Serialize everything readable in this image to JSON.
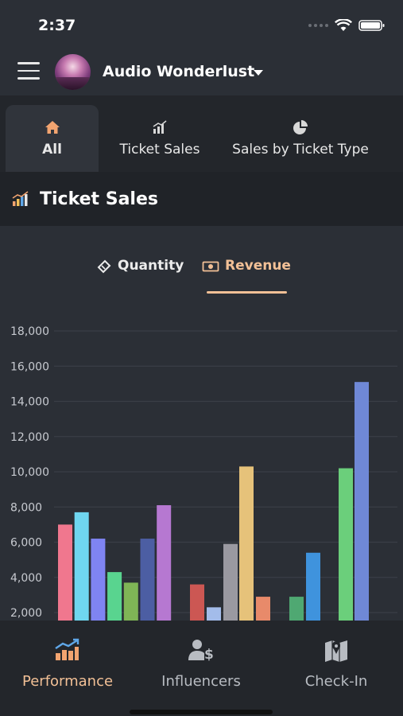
{
  "status_bar": {
    "time": "2:37"
  },
  "header": {
    "event_name": "Audio Wonderlust",
    "menu_icon": "hamburger-menu-icon",
    "dropdown_icon": "caret-down-icon"
  },
  "tabs": [
    {
      "label": "All",
      "icon": "home-icon",
      "active": true
    },
    {
      "label": "Ticket Sales",
      "icon": "bar-chart-icon",
      "active": false
    },
    {
      "label": "Sales by Ticket Type",
      "icon": "pie-chart-icon",
      "active": false
    }
  ],
  "section": {
    "title": "Ticket Sales",
    "icon": "bar-chart-icon"
  },
  "toggles": {
    "quantity_label": "Quantity",
    "revenue_label": "Revenue",
    "active": "revenue",
    "active_color": "#f2c096"
  },
  "chart_data": {
    "type": "bar",
    "y_ticks": [
      "18,000",
      "16,000",
      "14,000",
      "12,000",
      "10,000",
      "8,000",
      "6,000",
      "4,000",
      "2,000"
    ],
    "ylim": [
      2000,
      18000
    ],
    "grid": true,
    "groups": [
      {
        "bars": [
          {
            "value": 7000,
            "color": "#f0778e"
          },
          {
            "value": 7700,
            "color": "#6fd6f0"
          },
          {
            "value": 6200,
            "color": "#7f84f2"
          },
          {
            "value": 4300,
            "color": "#59d48f"
          },
          {
            "value": 3700,
            "color": "#7fb556"
          },
          {
            "value": 6200,
            "color": "#4c5ea3"
          },
          {
            "value": 8100,
            "color": "#b678d1"
          }
        ]
      },
      {
        "bars": [
          {
            "value": 3600,
            "color": "#cc5753"
          },
          {
            "value": 2300,
            "color": "#a3bcea"
          },
          {
            "value": 5900,
            "color": "#9a99a1"
          },
          {
            "value": 10300,
            "color": "#e6c27a"
          },
          {
            "value": 2900,
            "color": "#e88a6a"
          }
        ]
      },
      {
        "bars": [
          {
            "value": 2900,
            "color": "#4fa872"
          },
          {
            "value": 5400,
            "color": "#3f93dd"
          },
          {
            "value": 10200,
            "color": "#6bcf7b"
          },
          {
            "value": 15100,
            "color": "#6f88d6"
          }
        ]
      }
    ]
  },
  "bottom_nav": [
    {
      "label": "Performance",
      "icon": "performance-chart-icon",
      "active": true
    },
    {
      "label": "Influencers",
      "icon": "influencer-dollar-icon",
      "active": false
    },
    {
      "label": "Check-In",
      "icon": "map-pin-icon",
      "active": false
    }
  ]
}
